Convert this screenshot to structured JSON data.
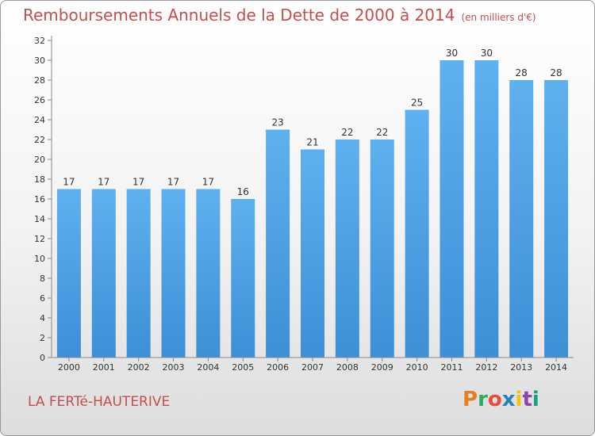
{
  "header": {
    "title": "Remboursements Annuels de la Dette de 2000 à 2014",
    "subtitle": "(en milliers d'€)"
  },
  "footer": {
    "commune": "LA FERTé-HAUTERIVE",
    "logo_text": "Proxiti",
    "logo_colors": [
      "#e67e22",
      "#27ae60",
      "#e74c3c",
      "#2980b9",
      "#f1c40f",
      "#8e44ad",
      "#16a085"
    ]
  },
  "chart_data": {
    "type": "bar",
    "categories": [
      "2000",
      "2001",
      "2002",
      "2003",
      "2004",
      "2005",
      "2006",
      "2007",
      "2008",
      "2009",
      "2010",
      "2011",
      "2012",
      "2013",
      "2014"
    ],
    "values": [
      17,
      17,
      17,
      17,
      17,
      16,
      23,
      21,
      22,
      22,
      25,
      30,
      30,
      28,
      28
    ],
    "ylim": [
      0,
      32
    ],
    "ytick_step": 2,
    "grid": false,
    "bar_color": "#3d8fd6",
    "bar_color_light": "#5fb0ee"
  }
}
